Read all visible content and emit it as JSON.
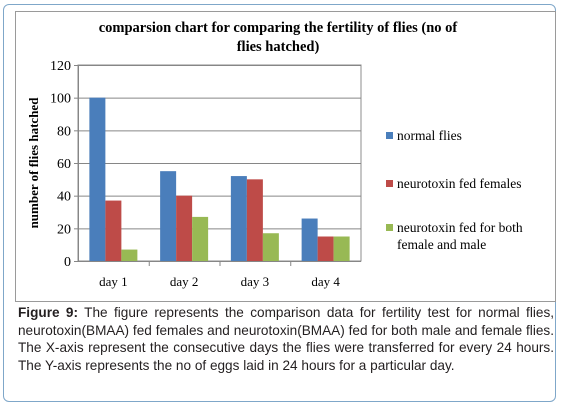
{
  "chart_data": {
    "type": "bar",
    "title": "comparsion chart for comparing the fertility of flies (no of flies hatched)",
    "title_lines": [
      "comparsion chart for comparing the fertility of flies (no of",
      "flies hatched)"
    ],
    "ylabel": "number of flies hatched",
    "xlabel": "",
    "ylim": [
      0,
      120
    ],
    "y_ticks": [
      0,
      20,
      40,
      60,
      80,
      100,
      120
    ],
    "categories": [
      "day 1",
      "day 2",
      "day 3",
      "day 4"
    ],
    "grid": true,
    "legend_position": "right",
    "series": [
      {
        "name": "normal flies",
        "name_lines": [
          "normal flies"
        ],
        "color": "#4a7ebb",
        "values": [
          100,
          55,
          52,
          26
        ]
      },
      {
        "name": "neurotoxin fed females",
        "name_lines": [
          "neurotoxin fed females"
        ],
        "color": "#be4b48",
        "values": [
          37,
          40,
          50,
          15
        ]
      },
      {
        "name": "neurotoxin fed for both female and male",
        "name_lines": [
          "neurotoxin fed for both",
          "female and male"
        ],
        "color": "#98b954",
        "values": [
          7,
          27,
          17,
          15
        ]
      }
    ]
  },
  "caption": {
    "label": "Figure 9:",
    "text": "The figure represents the comparison data for fertility test for normal flies, neurotoxin(BMAA) fed females and neurotoxin(BMAA) fed for both male and female flies. The X-axis represent the consecutive days the flies were transferred for every 24 hours. The Y-axis represents the no of eggs laid in 24 hours for a particular day."
  }
}
